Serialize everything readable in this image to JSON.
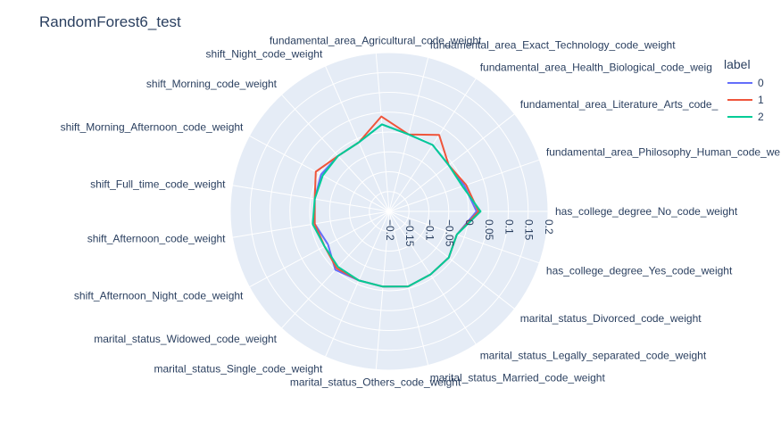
{
  "chart_data": {
    "type": "radar",
    "title": "RandomForest6_test",
    "legend_title": "label",
    "legend_position": "top-right",
    "radial_range": [
      -0.2,
      0.2
    ],
    "radial_ticks": [
      -0.2,
      -0.15,
      -0.1,
      -0.05,
      0,
      0.05,
      0.1,
      0.15,
      0.2
    ],
    "radial_tick_labels": [
      "−0.2",
      "−0.15",
      "−0.1",
      "−0.05",
      "0",
      "0.05",
      "0.1",
      "0.15",
      "0.2"
    ],
    "grid": true,
    "categories": [
      "has_college_degree_No_code_weight",
      "has_college_degree_Yes_code_weight",
      "marital_status_Divorced_code_weight",
      "marital_status_Legally_separated_code_weight",
      "marital_status_Married_code_weight",
      "marital_status_Others_code_weight",
      "marital_status_Single_code_weight",
      "marital_status_Widowed_code_weight",
      "shift_Afternoon_Night_code_weight",
      "shift_Afternoon_code_weight",
      "shift_Full_time_code_weight",
      "shift_Morning_Afternoon_code_weight",
      "shift_Morning_code_weight",
      "shift_Night_code_weight",
      "fundamental_area_Agricultural_code_weight",
      "fundamental_area_Exact_Technology_code_weight",
      "fundamental_area_Health_Biological_code_weight",
      "fundamental_area_Literature_Arts_code_weight",
      "fundamental_area_Philosophy_Human_code_weight"
    ],
    "category_labels": [
      "has_college_degree_No_code_weight",
      "has_college_degree_Yes_code_weight",
      "marital_status_Divorced_code_weight",
      "marital_status_Legally_separated_code_weight",
      "marital_status_Married_code_weight",
      "marital_status_Others_code_weight",
      "marital_status_Single_code_weight",
      "marital_status_Widowed_code_weight",
      "shift_Afternoon_Night_code_weight",
      "shift_Afternoon_code_weight",
      "shift_Full_time_code_weight",
      "shift_Morning_Afternoon_code_weight",
      "shift_Morning_code_weight",
      "shift_Night_code_weight",
      "fundamental_area_Agricultural_code_weight",
      "fundamental_area_Exact_Technology_code_weight",
      "fundamental_area_Health_Biological_code_weig",
      "fundamental_area_Literature_Arts_code_",
      "fundamental_area_Philosophy_Human_code_we"
    ],
    "series": [
      {
        "name": "0",
        "color": "#636efa",
        "values": [
          0.02,
          -0.02,
          -0.01,
          -0.01,
          -0.005,
          -0.01,
          -0.01,
          -0.0,
          -0.025,
          -0.01,
          -0.01,
          -0.005,
          -0.01,
          -0.01,
          0.02,
          0.0,
          0.0,
          -0.01,
          0.0
        ]
      },
      {
        "name": "1",
        "color": "#ef553b",
        "values": [
          0.025,
          -0.02,
          -0.01,
          -0.01,
          -0.005,
          -0.01,
          -0.01,
          -0.005,
          -0.015,
          -0.01,
          -0.01,
          0.01,
          -0.01,
          -0.01,
          0.04,
          0.0,
          0.03,
          -0.01,
          0.005
        ]
      },
      {
        "name": "2",
        "color": "#00cc96",
        "values": [
          0.03,
          -0.02,
          -0.01,
          -0.01,
          -0.005,
          -0.01,
          -0.01,
          -0.01,
          -0.015,
          -0.005,
          -0.01,
          -0.01,
          -0.01,
          -0.01,
          0.02,
          0.0,
          0.0,
          -0.01,
          -0.005
        ]
      }
    ]
  }
}
